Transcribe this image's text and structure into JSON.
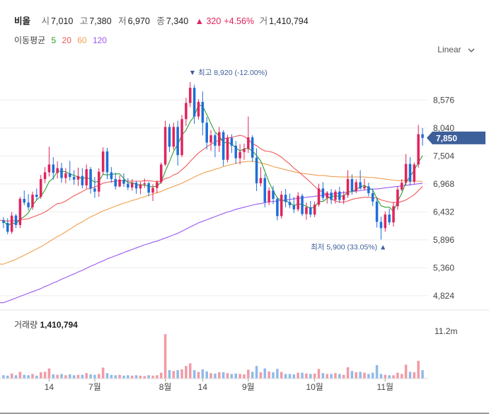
{
  "stock": {
    "name": "비올",
    "open_label": "시",
    "open": "7,010",
    "high_label": "고",
    "high": "7,380",
    "low_label": "저",
    "low": "6,970",
    "close_label": "종",
    "close": "7,340",
    "change": "▲ 320",
    "change_pct": "+4.56%",
    "volume_label": "거",
    "volume": "1,410,794"
  },
  "moving_average": {
    "label": "이동평균",
    "periods": [
      {
        "value": "5",
        "color": "#2ca02c"
      },
      {
        "value": "20",
        "color": "#f25a5a"
      },
      {
        "value": "60",
        "color": "#f0a050"
      },
      {
        "value": "120",
        "color": "#9b59f0"
      }
    ]
  },
  "scale_toggle": {
    "label": "Linear",
    "icon": "chevron-down-icon"
  },
  "colors": {
    "up": "#e0245e",
    "down": "#1e6fd9",
    "volume_up": "#f29aa6",
    "volume_down": "#8fbbe8",
    "current_badge": "#3d5f9a"
  },
  "chart_data": {
    "type": "candlestick",
    "price_axis": {
      "ticks": [
        "8,576",
        "8,040",
        "7,504",
        "6,968",
        "6,432",
        "5,896",
        "5,360",
        "4,824"
      ],
      "ylim": [
        4550,
        9300
      ]
    },
    "volume_axis": {
      "ticks": [
        "11.2m"
      ],
      "ylim": [
        0,
        11200000
      ]
    },
    "current_price": "7,850",
    "max_annotation": "최고 8,920 (-12.00%)",
    "min_annotation": "최저 5,900 (33.05%)",
    "x_labels": [
      "14",
      "7월",
      "8월",
      "14",
      "9월",
      "10월",
      "11월"
    ],
    "volume_title": "거래량",
    "volume_value": "1,410,794",
    "ohlc": [
      [
        6270,
        6330,
        6120,
        6220
      ],
      [
        6220,
        6310,
        6000,
        6050
      ],
      [
        6050,
        6430,
        6010,
        6360
      ],
      [
        6360,
        6390,
        6120,
        6180
      ],
      [
        6180,
        6720,
        6120,
        6680
      ],
      [
        6680,
        6840,
        6560,
        6610
      ],
      [
        6610,
        6770,
        6460,
        6520
      ],
      [
        6520,
        6820,
        6470,
        6760
      ],
      [
        6760,
        6880,
        6660,
        6720
      ],
      [
        6720,
        7140,
        6680,
        7060
      ],
      [
        7060,
        7290,
        6980,
        7190
      ],
      [
        7190,
        7680,
        7110,
        7340
      ],
      [
        7340,
        7480,
        7050,
        7180
      ],
      [
        7180,
        7400,
        7070,
        7270
      ],
      [
        7270,
        7370,
        6990,
        7080
      ],
      [
        7080,
        7270,
        6980,
        7170
      ],
      [
        7170,
        7410,
        7030,
        7100
      ],
      [
        7100,
        7230,
        6950,
        7050
      ],
      [
        7050,
        7280,
        6930,
        7120
      ],
      [
        7120,
        7270,
        6880,
        6940
      ],
      [
        6940,
        7340,
        6880,
        7250
      ],
      [
        7250,
        7290,
        6780,
        6880
      ],
      [
        6880,
        7100,
        6700,
        6820
      ],
      [
        6820,
        7270,
        6720,
        7200
      ],
      [
        7200,
        7670,
        7150,
        7590
      ],
      [
        7590,
        7660,
        7060,
        7190
      ],
      [
        7190,
        7290,
        6990,
        7060
      ],
      [
        7060,
        7180,
        6860,
        6920
      ],
      [
        6920,
        7130,
        6900,
        7050
      ],
      [
        7050,
        7170,
        6910,
        6970
      ],
      [
        6970,
        7080,
        6850,
        6900
      ],
      [
        6900,
        7060,
        6840,
        6990
      ],
      [
        6990,
        7030,
        6780,
        6880
      ],
      [
        6880,
        7010,
        6770,
        6960
      ],
      [
        6960,
        7070,
        6890,
        6980
      ],
      [
        6980,
        7010,
        6730,
        6800
      ],
      [
        6800,
        6960,
        6640,
        6890
      ],
      [
        6890,
        7040,
        6790,
        7000
      ],
      [
        7000,
        7380,
        6970,
        7340
      ],
      [
        7340,
        8180,
        7310,
        8060
      ],
      [
        8060,
        8120,
        7580,
        7680
      ],
      [
        7680,
        8140,
        7620,
        8060
      ],
      [
        8060,
        8180,
        7320,
        7520
      ],
      [
        7520,
        8290,
        7480,
        8210
      ],
      [
        8210,
        8620,
        8080,
        8520
      ],
      [
        8520,
        8920,
        8440,
        8810
      ],
      [
        8810,
        8870,
        8120,
        8260
      ],
      [
        8260,
        8590,
        8200,
        8540
      ],
      [
        8540,
        8740,
        7900,
        8140
      ],
      [
        8140,
        8250,
        7630,
        7760
      ],
      [
        7760,
        8000,
        7600,
        7900
      ],
      [
        7900,
        7940,
        7480,
        7700
      ],
      [
        7700,
        8060,
        7580,
        7960
      ],
      [
        7960,
        8000,
        7310,
        7430
      ],
      [
        7430,
        7910,
        7380,
        7850
      ],
      [
        7850,
        7920,
        7560,
        7700
      ],
      [
        7700,
        7790,
        7350,
        7460
      ],
      [
        7460,
        7730,
        7340,
        7580
      ],
      [
        7580,
        7740,
        7430,
        7640
      ],
      [
        7640,
        8260,
        7560,
        7860
      ],
      [
        7860,
        7900,
        7390,
        7470
      ],
      [
        7470,
        7650,
        6830,
        6980
      ],
      [
        6980,
        7290,
        6920,
        7080
      ],
      [
        7080,
        7160,
        6520,
        6620
      ],
      [
        6620,
        6900,
        6560,
        6840
      ],
      [
        6840,
        6930,
        6580,
        6680
      ],
      [
        6680,
        6720,
        6270,
        6350
      ],
      [
        6350,
        6830,
        6300,
        6760
      ],
      [
        6760,
        6870,
        6520,
        6620
      ],
      [
        6620,
        6780,
        6500,
        6560
      ],
      [
        6560,
        6720,
        6410,
        6480
      ],
      [
        6480,
        6810,
        6440,
        6740
      ],
      [
        6740,
        6780,
        6350,
        6390
      ],
      [
        6390,
        6610,
        6280,
        6520
      ],
      [
        6520,
        6640,
        6330,
        6380
      ],
      [
        6380,
        6630,
        6330,
        6570
      ],
      [
        6570,
        6970,
        6530,
        6880
      ],
      [
        6880,
        7000,
        6650,
        6700
      ],
      [
        6700,
        6830,
        6590,
        6800
      ],
      [
        6800,
        6870,
        6580,
        6660
      ],
      [
        6660,
        6860,
        6590,
        6820
      ],
      [
        6820,
        6910,
        6600,
        6660
      ],
      [
        6660,
        6830,
        6580,
        6750
      ],
      [
        6750,
        7230,
        6700,
        7060
      ],
      [
        7060,
        7150,
        6760,
        6830
      ],
      [
        6830,
        7060,
        6790,
        7000
      ],
      [
        7000,
        7230,
        6860,
        6880
      ],
      [
        6880,
        7070,
        6840,
        6920
      ],
      [
        6920,
        6990,
        6730,
        6790
      ],
      [
        6790,
        6870,
        6540,
        6630
      ],
      [
        6630,
        6700,
        6130,
        6240
      ],
      [
        6240,
        6340,
        5900,
        6120
      ],
      [
        6120,
        6440,
        6050,
        6380
      ],
      [
        6380,
        6490,
        6180,
        6230
      ],
      [
        6230,
        6620,
        6150,
        6540
      ],
      [
        6540,
        6920,
        6470,
        6860
      ],
      [
        6860,
        7060,
        6830,
        6990
      ],
      [
        6990,
        7540,
        6940,
        7350
      ],
      [
        7350,
        7480,
        6940,
        7010
      ],
      [
        7010,
        7380,
        6970,
        7340
      ],
      [
        7340,
        8100,
        7280,
        7920
      ],
      [
        7920,
        8040,
        7700,
        7850
      ]
    ],
    "volume": [
      0.8,
      0.7,
      1.2,
      0.8,
      1.6,
      0.9,
      0.8,
      1.1,
      0.7,
      1.5,
      1.6,
      2.4,
      1.0,
      0.9,
      1.1,
      0.8,
      1.0,
      0.8,
      0.9,
      0.9,
      1.3,
      1.0,
      0.9,
      1.1,
      2.6,
      1.3,
      0.9,
      0.8,
      0.9,
      0.7,
      0.8,
      0.7,
      0.8,
      0.7,
      0.6,
      0.8,
      0.7,
      0.8,
      1.4,
      10.5,
      2.0,
      1.8,
      2.0,
      2.2,
      3.0,
      3.6,
      2.0,
      1.6,
      2.2,
      1.7,
      1.3,
      1.2,
      1.5,
      1.5,
      1.3,
      1.1,
      1.2,
      1.1,
      1.0,
      2.1,
      1.6,
      3.0,
      1.5,
      2.4,
      1.7,
      1.5,
      2.3,
      1.6,
      1.1,
      1.1,
      1.0,
      1.4,
      1.4,
      1.2,
      1.1,
      1.2,
      2.3,
      1.3,
      1.1,
      1.1,
      1.3,
      1.1,
      0.9,
      2.7,
      1.8,
      1.5,
      1.6,
      1.4,
      1.1,
      1.4,
      3.2,
      1.1,
      0.9,
      0.8,
      0.8,
      1.4,
      1.1,
      3.3,
      1.6,
      1.5,
      4.2,
      2.0
    ],
    "ma5": [
      6270,
      6160,
      6220,
      6200,
      6290,
      6340,
      6410,
      6560,
      6660,
      6730,
      6850,
      7010,
      7080,
      7210,
      7210,
      7200,
      7160,
      7130,
      7100,
      7070,
      7090,
      7060,
      7000,
      7020,
      7150,
      7140,
      7150,
      7160,
      7160,
      7070,
      6990,
      6990,
      6960,
      6940,
      6950,
      6920,
      6910,
      6930,
      7000,
      7210,
      7390,
      7590,
      7730,
      7900,
      8000,
      8160,
      8270,
      8480,
      8460,
      8300,
      8120,
      7960,
      7890,
      7750,
      7770,
      7730,
      7660,
      7600,
      7640,
      7650,
      7600,
      7510,
      7410,
      7210,
      7000,
      6840,
      6700,
      6650,
      6650,
      6600,
      6550,
      6590,
      6570,
      6540,
      6500,
      6520,
      6630,
      6630,
      6690,
      6720,
      6740,
      6730,
      6740,
      6810,
      6820,
      6860,
      6910,
      6940,
      6890,
      6850,
      6690,
      6550,
      6520,
      6520,
      6440,
      6630,
      6790,
      7000,
      7110,
      7230,
      7380,
      7510
    ],
    "ma20": [
      6270,
      6250,
      6270,
      6250,
      6280,
      6290,
      6300,
      6330,
      6360,
      6390,
      6430,
      6480,
      6540,
      6590,
      6600,
      6640,
      6690,
      6740,
      6780,
      6820,
      6870,
      6880,
      6910,
      6940,
      6980,
      7000,
      7010,
      7020,
      7030,
      7030,
      7020,
      7020,
      7020,
      7020,
      7030,
      7030,
      7020,
      7010,
      7020,
      7070,
      7090,
      7140,
      7170,
      7240,
      7310,
      7400,
      7480,
      7560,
      7620,
      7680,
      7730,
      7770,
      7810,
      7830,
      7850,
      7860,
      7880,
      7900,
      7880,
      7820,
      7740,
      7700,
      7640,
      7600,
      7590,
      7570,
      7530,
      7480,
      7410,
      7350,
      7270,
      7210,
      7140,
      7070,
      7000,
      6920,
      6850,
      6810,
      6740,
      6680,
      6640,
      6620,
      6620,
      6640,
      6670,
      6690,
      6700,
      6710,
      6710,
      6700,
      6700,
      6660,
      6640,
      6620,
      6610,
      6610,
      6630,
      6660,
      6710,
      6760,
      6840,
      6920
    ],
    "ma60": [
      5430,
      5460,
      5490,
      5520,
      5560,
      5600,
      5640,
      5680,
      5720,
      5760,
      5810,
      5860,
      5910,
      5960,
      6000,
      6050,
      6100,
      6150,
      6200,
      6240,
      6290,
      6330,
      6370,
      6410,
      6450,
      6480,
      6510,
      6540,
      6570,
      6600,
      6620,
      6650,
      6670,
      6700,
      6720,
      6750,
      6770,
      6800,
      6820,
      6860,
      6890,
      6920,
      6950,
      6980,
      7020,
      7060,
      7100,
      7140,
      7170,
      7200,
      7220,
      7250,
      7270,
      7300,
      7320,
      7340,
      7360,
      7380,
      7390,
      7400,
      7400,
      7390,
      7370,
      7350,
      7330,
      7300,
      7280,
      7260,
      7240,
      7220,
      7200,
      7180,
      7170,
      7160,
      7150,
      7140,
      7130,
      7130,
      7120,
      7110,
      7110,
      7100,
      7100,
      7100,
      7100,
      7100,
      7100,
      7100,
      7090,
      7090,
      7080,
      7070,
      7060,
      7050,
      7040,
      7030,
      7030,
      7030,
      7030,
      7020,
      7020,
      7010
    ],
    "ma120": [
      4690,
      4720,
      4750,
      4780,
      4810,
      4840,
      4870,
      4900,
      4930,
      4960,
      5000,
      5030,
      5070,
      5100,
      5140,
      5170,
      5210,
      5240,
      5280,
      5310,
      5350,
      5390,
      5420,
      5460,
      5490,
      5530,
      5560,
      5590,
      5620,
      5650,
      5680,
      5710,
      5740,
      5770,
      5800,
      5820,
      5850,
      5870,
      5900,
      5930,
      5960,
      5990,
      6020,
      6060,
      6100,
      6140,
      6180,
      6220,
      6250,
      6280,
      6310,
      6340,
      6370,
      6400,
      6430,
      6450,
      6480,
      6500,
      6520,
      6540,
      6560,
      6580,
      6590,
      6610,
      6620,
      6630,
      6640,
      6650,
      6660,
      6670,
      6680,
      6690,
      6700,
      6710,
      6720,
      6730,
      6740,
      6750,
      6760,
      6770,
      6780,
      6790,
      6800,
      6810,
      6820,
      6830,
      6840,
      6850,
      6860,
      6870,
      6870,
      6880,
      6890,
      6900,
      6910,
      6920,
      6930,
      6940,
      6950,
      6960,
      6970,
      6980
    ]
  }
}
